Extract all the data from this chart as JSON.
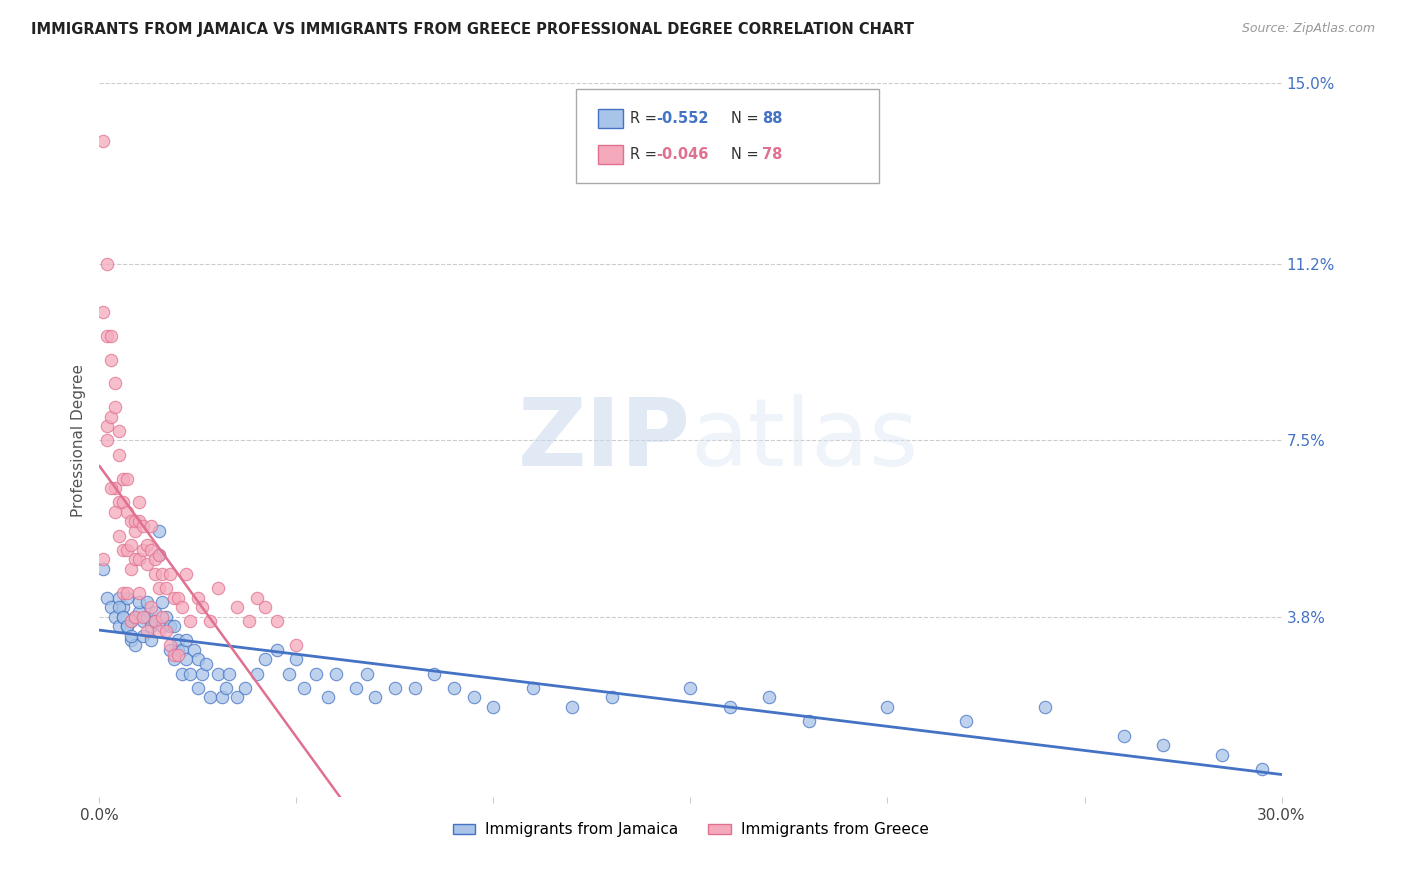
{
  "title": "IMMIGRANTS FROM JAMAICA VS IMMIGRANTS FROM GREECE PROFESSIONAL DEGREE CORRELATION CHART",
  "source": "Source: ZipAtlas.com",
  "ylabel": "Professional Degree",
  "xlim": [
    0.0,
    0.3
  ],
  "ylim": [
    0.0,
    0.15
  ],
  "ytick_labels_right": [
    "15.0%",
    "11.2%",
    "7.5%",
    "3.8%"
  ],
  "ytick_values_right": [
    0.15,
    0.112,
    0.075,
    0.038
  ],
  "legend_label1": "Immigrants from Jamaica",
  "legend_label2": "Immigrants from Greece",
  "color_jamaica": "#a8c4e8",
  "color_greece": "#f5aabc",
  "color_jamaica_line": "#4472c4",
  "color_greece_line": "#e07090",
  "watermark_zip": "ZIP",
  "watermark_atlas": "atlas",
  "jamaica_x": [
    0.001,
    0.002,
    0.003,
    0.004,
    0.005,
    0.005,
    0.006,
    0.006,
    0.007,
    0.007,
    0.008,
    0.008,
    0.009,
    0.009,
    0.01,
    0.01,
    0.011,
    0.011,
    0.012,
    0.012,
    0.013,
    0.013,
    0.014,
    0.014,
    0.015,
    0.015,
    0.016,
    0.016,
    0.017,
    0.018,
    0.018,
    0.019,
    0.019,
    0.02,
    0.02,
    0.021,
    0.021,
    0.022,
    0.022,
    0.023,
    0.024,
    0.025,
    0.025,
    0.026,
    0.027,
    0.028,
    0.03,
    0.031,
    0.032,
    0.033,
    0.035,
    0.037,
    0.04,
    0.042,
    0.045,
    0.048,
    0.05,
    0.052,
    0.055,
    0.058,
    0.06,
    0.065,
    0.068,
    0.07,
    0.075,
    0.08,
    0.085,
    0.09,
    0.095,
    0.1,
    0.11,
    0.12,
    0.13,
    0.15,
    0.16,
    0.17,
    0.18,
    0.2,
    0.22,
    0.24,
    0.26,
    0.27,
    0.285,
    0.295,
    0.005,
    0.006,
    0.007,
    0.008
  ],
  "jamaica_y": [
    0.048,
    0.042,
    0.04,
    0.038,
    0.042,
    0.036,
    0.04,
    0.038,
    0.036,
    0.042,
    0.037,
    0.033,
    0.038,
    0.032,
    0.039,
    0.041,
    0.037,
    0.034,
    0.041,
    0.038,
    0.036,
    0.033,
    0.039,
    0.037,
    0.051,
    0.056,
    0.036,
    0.041,
    0.038,
    0.031,
    0.036,
    0.029,
    0.036,
    0.031,
    0.033,
    0.031,
    0.026,
    0.033,
    0.029,
    0.026,
    0.031,
    0.029,
    0.023,
    0.026,
    0.028,
    0.021,
    0.026,
    0.021,
    0.023,
    0.026,
    0.021,
    0.023,
    0.026,
    0.029,
    0.031,
    0.026,
    0.029,
    0.023,
    0.026,
    0.021,
    0.026,
    0.023,
    0.026,
    0.021,
    0.023,
    0.023,
    0.026,
    0.023,
    0.021,
    0.019,
    0.023,
    0.019,
    0.021,
    0.023,
    0.019,
    0.021,
    0.016,
    0.019,
    0.016,
    0.019,
    0.013,
    0.011,
    0.009,
    0.006,
    0.04,
    0.038,
    0.036,
    0.034
  ],
  "greece_x": [
    0.001,
    0.001,
    0.002,
    0.002,
    0.002,
    0.003,
    0.003,
    0.003,
    0.004,
    0.004,
    0.004,
    0.005,
    0.005,
    0.005,
    0.006,
    0.006,
    0.006,
    0.007,
    0.007,
    0.007,
    0.008,
    0.008,
    0.008,
    0.009,
    0.009,
    0.009,
    0.01,
    0.01,
    0.01,
    0.011,
    0.011,
    0.012,
    0.012,
    0.013,
    0.013,
    0.014,
    0.014,
    0.015,
    0.015,
    0.016,
    0.017,
    0.018,
    0.019,
    0.02,
    0.021,
    0.022,
    0.023,
    0.025,
    0.026,
    0.028,
    0.03,
    0.035,
    0.038,
    0.04,
    0.042,
    0.045,
    0.05,
    0.001,
    0.002,
    0.003,
    0.004,
    0.005,
    0.006,
    0.007,
    0.008,
    0.009,
    0.01,
    0.011,
    0.012,
    0.013,
    0.014,
    0.015,
    0.016,
    0.017,
    0.018,
    0.019,
    0.02
  ],
  "greece_y": [
    0.138,
    0.102,
    0.112,
    0.097,
    0.078,
    0.092,
    0.097,
    0.08,
    0.087,
    0.082,
    0.065,
    0.077,
    0.072,
    0.062,
    0.067,
    0.062,
    0.052,
    0.06,
    0.067,
    0.052,
    0.058,
    0.053,
    0.048,
    0.056,
    0.058,
    0.05,
    0.062,
    0.058,
    0.05,
    0.057,
    0.052,
    0.053,
    0.049,
    0.052,
    0.057,
    0.047,
    0.05,
    0.044,
    0.051,
    0.047,
    0.044,
    0.047,
    0.042,
    0.042,
    0.04,
    0.047,
    0.037,
    0.042,
    0.04,
    0.037,
    0.044,
    0.04,
    0.037,
    0.042,
    0.04,
    0.037,
    0.032,
    0.05,
    0.075,
    0.065,
    0.06,
    0.055,
    0.043,
    0.043,
    0.037,
    0.038,
    0.043,
    0.038,
    0.035,
    0.04,
    0.037,
    0.035,
    0.038,
    0.035,
    0.032,
    0.03,
    0.03
  ]
}
